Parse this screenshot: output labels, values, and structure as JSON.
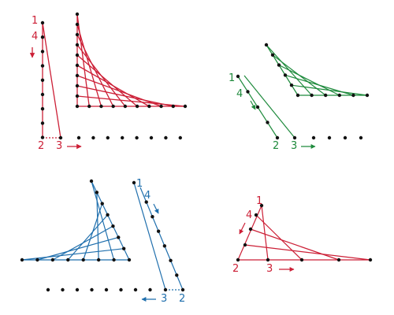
{
  "colors": {
    "red": "#cc1f36",
    "green": "#1e8a3c",
    "blue": "#1f6fad",
    "dot": "#111111"
  },
  "panels": {
    "red": {
      "label_1": "1",
      "label_2": "2",
      "label_3": "3",
      "label_4": "4"
    },
    "green": {
      "label_1": "1",
      "label_2": "2",
      "label_3": "3",
      "label_4": "4"
    },
    "blue": {
      "label_1": "1",
      "label_2": "2",
      "label_3": "3",
      "label_4": "4"
    },
    "small": {
      "label_1": "1",
      "label_2": "2",
      "label_3": "3",
      "label_4": "4"
    }
  }
}
